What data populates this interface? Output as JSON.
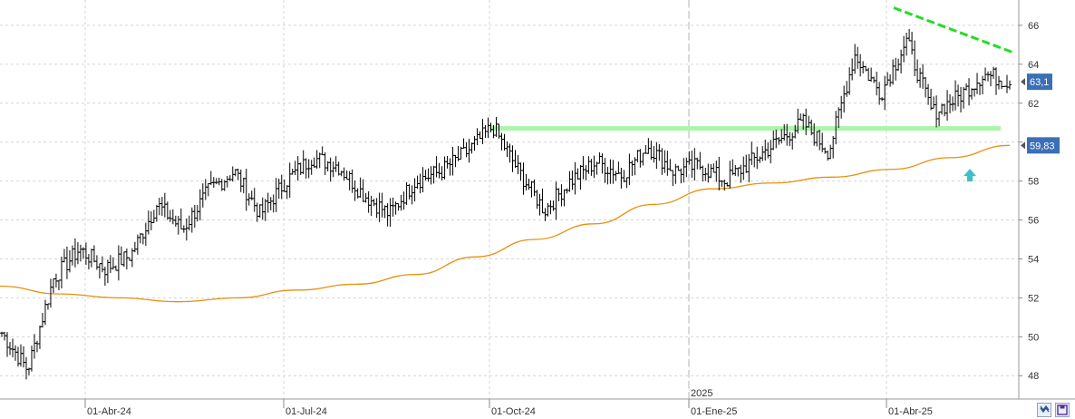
{
  "chart_data": {
    "type": "ohlc",
    "y_axis": {
      "ylim": [
        46.8,
        67.3
      ],
      "tick_values": [
        48,
        50,
        52,
        54,
        56,
        58,
        60,
        62,
        64,
        66
      ],
      "tick_labels": [
        "48",
        "50",
        "52",
        "54",
        "56",
        "58",
        "60",
        "62",
        "64",
        "66"
      ],
      "side": "right"
    },
    "x_axis": {
      "period": [
        "2024-01",
        "2025-06"
      ],
      "tick_labels": [
        "01-Abr-24",
        "01-Jul-24",
        "01-Oct-24",
        "01-Ene-25",
        "01-Abr-25"
      ],
      "year_label": "2025"
    },
    "grid": true,
    "price_series": {
      "name": "",
      "color": "#000000",
      "anchor_closes": [
        50.2,
        48.3,
        53.0,
        54.5,
        53.5,
        54.2,
        56.8,
        55.5,
        57.5,
        58.5,
        56.3,
        58.0,
        59.2,
        58.8,
        57.3,
        56.3,
        58.0,
        58.5,
        59.5,
        60.8,
        58.5,
        56.5,
        58.0,
        59.0,
        58.3,
        59.8,
        58.5,
        58.8,
        58.0,
        59.0,
        60.0,
        61.0,
        59.5,
        64.5,
        62.5,
        65.2,
        61.5,
        62.3,
        63.5,
        63.1
      ]
    },
    "moving_average": {
      "color": "#e8900c",
      "values": [
        52.6,
        52.2,
        52.0,
        51.8,
        52.0,
        52.4,
        52.7,
        53.2,
        54.1,
        55.0,
        55.8,
        56.8,
        57.6,
        57.9,
        58.2,
        58.6,
        59.2,
        59.83
      ]
    },
    "annotations": {
      "resistance_line": {
        "color": "#aaf5aa",
        "value": 60.7
      },
      "downtrend_line": {
        "color": "#22dd22",
        "values": [
          66.9,
          64.6
        ]
      },
      "arrow": {
        "color": "#3cc0c8",
        "value": 58.3,
        "direction": "up"
      }
    },
    "last_price": {
      "value": 63.1,
      "label": "63,1"
    },
    "ma_last": {
      "value": 59.83,
      "label": "59,83"
    }
  }
}
